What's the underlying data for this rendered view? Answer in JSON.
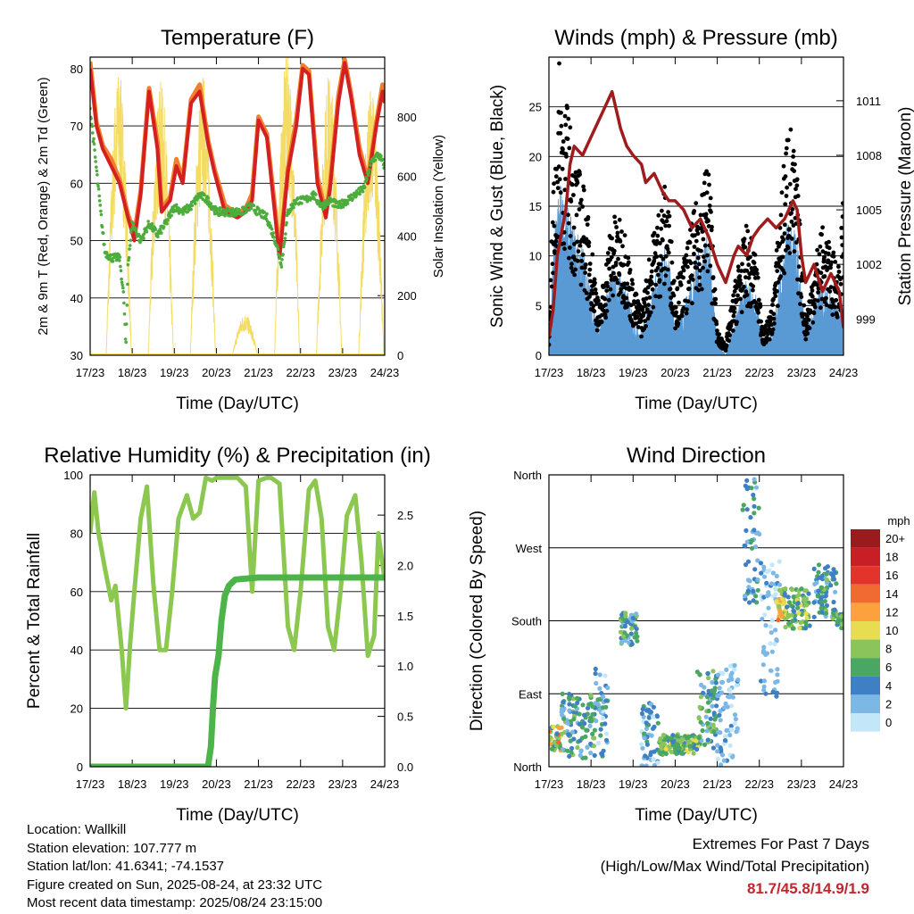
{
  "info": {
    "location": "Location: Wallkill",
    "elevation": "Station elevation: 107.777 m",
    "latlon": "Station lat/lon: 41.6341; -74.1537",
    "created": "Figure created on Sun, 2025-08-24, at 23:32 UTC",
    "recent": "Most recent data timestamp: 2025/08/24 23:15:00"
  },
  "extremes": {
    "title": "Extremes For Past 7 Days",
    "subtitle": "(High/Low/Max Wind/Total Precipitation)",
    "values": "81.7/45.8/14.9/1.9"
  },
  "colors": {
    "temp_red": "#d42020",
    "temp_orange": "#f08030",
    "dewpoint_green": "#4cac3c",
    "insolation_yellow": "#f4dc64",
    "wind_blue": "#5a9ad4",
    "gust_black": "#000000",
    "pressure_maroon": "#a01c1c",
    "rh_lightgreen": "#8cc850",
    "precip_green": "#4cb448"
  },
  "chart_data": [
    {
      "type": "line",
      "title": "Temperature (F)",
      "xlabel": "Time (Day/UTC)",
      "ylabel": "2m & 9m T (Red, Orange) & 2m Td (Green)",
      "y2label": "Solar Insolation (Yellow)",
      "x_ticks": [
        "17/23",
        "18/23",
        "19/23",
        "20/23",
        "21/23",
        "22/23",
        "23/23",
        "24/23"
      ],
      "ylim": [
        30,
        82
      ],
      "y_ticks": [
        30,
        40,
        50,
        60,
        70,
        80
      ],
      "y2lim": [
        0,
        1000
      ],
      "y2_ticks": [
        0,
        200,
        400,
        600,
        800
      ],
      "grid": true,
      "series": [
        {
          "name": "2m T",
          "axis": "left",
          "color": "#d42020",
          "x": [
            0,
            0.15,
            0.3,
            0.5,
            0.7,
            0.9,
            1.05,
            1.2,
            1.4,
            1.6,
            1.7,
            1.9,
            2.05,
            2.2,
            2.4,
            2.6,
            2.8,
            2.95,
            3.2,
            3.5,
            3.7,
            3.85,
            4.0,
            4.2,
            4.4,
            4.5,
            4.7,
            4.9,
            5.05,
            5.2,
            5.4,
            5.6,
            5.7,
            5.9,
            6.05,
            6.2,
            6.4,
            6.6,
            6.8,
            6.95,
            7.0
          ],
          "y": [
            80,
            70,
            66,
            63,
            60,
            54,
            50,
            58,
            76,
            66,
            55,
            57,
            63,
            60,
            74,
            76,
            67,
            62,
            55,
            54,
            55,
            57,
            71,
            68,
            54,
            47,
            62,
            70,
            80,
            79,
            60,
            54,
            59,
            74,
            81,
            75,
            65,
            60,
            70,
            76,
            74
          ]
        },
        {
          "name": "2m Td",
          "axis": "left",
          "color": "#4cac3c",
          "x": [
            0,
            0.1,
            0.25,
            0.35,
            0.5,
            0.7,
            0.8,
            0.85,
            0.9,
            1.0,
            1.2,
            1.4,
            1.6,
            1.8,
            2.0,
            2.2,
            2.4,
            2.6,
            2.8,
            3.0,
            3.3,
            3.6,
            3.8,
            4.0,
            4.2,
            4.4,
            4.55,
            4.7,
            4.9,
            5.1,
            5.3,
            5.5,
            5.7,
            5.9,
            6.1,
            6.3,
            6.5,
            6.7,
            6.85,
            7.0
          ],
          "y": [
            73,
            66,
            55,
            48,
            47,
            47,
            40,
            31,
            46,
            53,
            50,
            53,
            51,
            53,
            56,
            55,
            56,
            58,
            57,
            55,
            55,
            55,
            56,
            55,
            54,
            50,
            46,
            55,
            57,
            57,
            58,
            56,
            57,
            56,
            57,
            58,
            59,
            64,
            65,
            63
          ]
        },
        {
          "name": "Solar Insolation",
          "axis": "right",
          "color": "#f4dc64",
          "days": [
            0,
            1,
            2,
            3,
            4,
            5,
            6
          ],
          "daily_peaks": [
            960,
            920,
            950,
            140,
            1010,
            950,
            910
          ]
        }
      ]
    },
    {
      "type": "scatter",
      "title": "Winds (mph) & Pressure (mb)",
      "xlabel": "Time (Day/UTC)",
      "ylabel": "Sonic Wind & Gust (Blue, Black)",
      "y2label": "Station Pressure (Maroon)",
      "x_ticks": [
        "17/23",
        "18/23",
        "19/23",
        "20/23",
        "21/23",
        "22/23",
        "23/23",
        "24/23"
      ],
      "ylim": [
        0,
        30
      ],
      "y_ticks": [
        0,
        5,
        10,
        15,
        20,
        25
      ],
      "y2lim": [
        997.0,
        1013.4
      ],
      "y2_ticks": [
        999,
        1002,
        1005,
        1008,
        1011
      ],
      "grid": true,
      "series": [
        {
          "name": "Station Pressure",
          "axis": "right",
          "color": "#a01c1c",
          "x": [
            0,
            0.1,
            0.2,
            0.4,
            0.5,
            0.6,
            0.8,
            1.0,
            1.3,
            1.5,
            1.65,
            1.7,
            1.85,
            2.0,
            2.2,
            2.3,
            2.5,
            2.7,
            2.85,
            3.0,
            3.2,
            3.4,
            3.6,
            3.8,
            4.0,
            4.2,
            4.4,
            4.5,
            4.7,
            4.85,
            5.0,
            5.2,
            5.4,
            5.6,
            5.8,
            5.9,
            6.0,
            6.1,
            6.3,
            6.5,
            6.7,
            6.8,
            6.9,
            7.0
          ],
          "y": [
            998.0,
            999.5,
            1002.5,
            1005.0,
            1007.5,
            1008.5,
            1008.0,
            1009.0,
            1010.5,
            1011.5,
            1010.0,
            1009.5,
            1008.5,
            1008.0,
            1007.5,
            1006.5,
            1007.0,
            1006.0,
            1005.5,
            1005.5,
            1005.0,
            1004.0,
            1004.5,
            1003.5,
            1002.0,
            1001.0,
            1002.5,
            1003.0,
            1002.5,
            1003.5,
            1004.0,
            1004.5,
            1004.0,
            1004.5,
            1005.5,
            1005.0,
            1002.5,
            1001.0,
            1002.0,
            1000.5,
            1001.5,
            1001.0,
            1000.5,
            998.5
          ]
        },
        {
          "name": "Sonic Wind",
          "axis": "left",
          "color": "#5a9ad4",
          "x": [
            0,
            0.1,
            0.25,
            0.4,
            0.6,
            0.8,
            1.0,
            1.2,
            1.5,
            1.8,
            2.0,
            2.2,
            2.5,
            2.8,
            3.0,
            3.2,
            3.5,
            3.8,
            4.0,
            4.2,
            4.5,
            4.7,
            4.9,
            5.1,
            5.3,
            5.5,
            5.7,
            5.9,
            6.1,
            6.3,
            6.5,
            6.7,
            6.9,
            7.0
          ],
          "y": [
            1,
            8,
            14,
            12,
            10,
            9,
            5,
            2,
            7,
            6,
            3,
            2,
            6,
            9,
            3,
            4,
            8,
            10,
            1,
            0,
            4,
            6,
            5,
            1,
            2,
            7,
            12,
            9,
            2,
            4,
            6,
            5,
            4,
            3
          ]
        },
        {
          "name": "Gust",
          "axis": "left",
          "color": "#000000",
          "x": [
            0,
            0.1,
            0.25,
            0.4,
            0.6,
            0.8,
            1.0,
            1.2,
            1.5,
            1.8,
            2.0,
            2.2,
            2.5,
            2.8,
            3.0,
            3.2,
            3.5,
            3.8,
            4.0,
            4.2,
            4.5,
            4.7,
            4.9,
            5.1,
            5.3,
            5.5,
            5.7,
            5.9,
            6.1,
            6.3,
            6.5,
            6.7,
            6.9,
            7.0
          ],
          "y": [
            2,
            14,
            25,
            22,
            17,
            15,
            10,
            4,
            12,
            11,
            6,
            4,
            11,
            15,
            6,
            8,
            13,
            17,
            2,
            1,
            8,
            11,
            9,
            2,
            4,
            13,
            21,
            15,
            3,
            8,
            11,
            9,
            8,
            14
          ]
        }
      ]
    },
    {
      "type": "line",
      "title": "Relative Humidity (%) & Precipitation (in)",
      "xlabel": "Time (Day/UTC)",
      "ylabel": "Percent & Total Rainfall",
      "x_ticks": [
        "17/23",
        "18/23",
        "19/23",
        "20/23",
        "21/23",
        "22/23",
        "23/23",
        "24/23"
      ],
      "ylim": [
        0,
        100
      ],
      "y_ticks": [
        0,
        20,
        40,
        60,
        80,
        100
      ],
      "y2lim": [
        0,
        2.9
      ],
      "y2_ticks": [
        "0.0",
        "0.5",
        "1.0",
        "1.5",
        "2.0",
        "2.5"
      ],
      "grid": true,
      "series": [
        {
          "name": "Relative Humidity",
          "axis": "left",
          "color": "#8cc850",
          "x": [
            0,
            0.1,
            0.2,
            0.35,
            0.5,
            0.6,
            0.75,
            0.85,
            0.95,
            1.05,
            1.2,
            1.35,
            1.5,
            1.65,
            1.8,
            1.95,
            2.1,
            2.3,
            2.45,
            2.6,
            2.75,
            2.9,
            3.0,
            3.2,
            3.5,
            3.7,
            3.85,
            4.0,
            4.2,
            4.3,
            4.5,
            4.7,
            4.85,
            5.0,
            5.2,
            5.35,
            5.5,
            5.65,
            5.8,
            5.95,
            6.1,
            6.3,
            6.45,
            6.6,
            6.75,
            6.85,
            7.0
          ],
          "y": [
            80,
            94,
            80,
            68,
            57,
            62,
            40,
            20,
            42,
            60,
            85,
            96,
            63,
            40,
            40,
            60,
            85,
            93,
            85,
            87,
            99,
            98,
            99,
            99,
            99,
            96,
            60,
            98,
            99,
            99,
            97,
            48,
            40,
            60,
            95,
            98,
            85,
            48,
            40,
            60,
            86,
            93,
            70,
            38,
            45,
            80,
            64
          ]
        },
        {
          "name": "Total Precipitation",
          "axis": "right",
          "color": "#4cb448",
          "x": [
            0,
            1.0,
            2.0,
            2.8,
            2.87,
            2.92,
            2.97,
            3.05,
            3.12,
            3.2,
            3.3,
            3.45,
            4.0,
            5.0,
            6.0,
            7.0
          ],
          "y": [
            0,
            0,
            0,
            0,
            0.2,
            0.6,
            0.9,
            1.1,
            1.45,
            1.7,
            1.8,
            1.86,
            1.88,
            1.88,
            1.88,
            1.88
          ]
        }
      ]
    },
    {
      "type": "scatter",
      "title": "Wind Direction",
      "xlabel": "Time (Day/UTC)",
      "ylabel": "Direction (Colored By Speed)",
      "x_ticks": [
        "17/23",
        "18/23",
        "19/23",
        "20/23",
        "21/23",
        "22/23",
        "23/23",
        "24/23"
      ],
      "y_ticks": [
        "North",
        "East",
        "South",
        "West",
        "North"
      ],
      "ylim": [
        0,
        360
      ],
      "grid": true,
      "legend": {
        "title": "mph",
        "labels": [
          "20+",
          "18",
          "16",
          "14",
          "12",
          "10",
          "8",
          "6",
          "4",
          "2",
          "0"
        ],
        "colors": [
          "#9a1a1e",
          "#c81e25",
          "#e2342c",
          "#f06a32",
          "#fba23f",
          "#e8dc50",
          "#8ac45a",
          "#4aa663",
          "#3e80c3",
          "#7cb8e6",
          "#c3e6f8"
        ]
      },
      "clusters": [
        {
          "x": [
            0,
            0.3
          ],
          "y": [
            20,
            50
          ],
          "speed": [
            4,
            14
          ]
        },
        {
          "x": [
            0.3,
            1.1
          ],
          "y": [
            10,
            90
          ],
          "speed": [
            2,
            8
          ]
        },
        {
          "x": [
            1.1,
            1.4
          ],
          "y": [
            10,
            130
          ],
          "speed": [
            0,
            6
          ]
        },
        {
          "x": [
            1.7,
            2.1
          ],
          "y": [
            150,
            190
          ],
          "speed": [
            2,
            8
          ]
        },
        {
          "x": [
            2.2,
            2.6
          ],
          "y": [
            0,
            80
          ],
          "speed": [
            0,
            6
          ]
        },
        {
          "x": [
            2.6,
            3.6
          ],
          "y": [
            15,
            40
          ],
          "speed": [
            4,
            10
          ]
        },
        {
          "x": [
            3.5,
            4.0
          ],
          "y": [
            20,
            120
          ],
          "speed": [
            2,
            8
          ]
        },
        {
          "x": [
            4.0,
            4.5
          ],
          "y": [
            0,
            130
          ],
          "speed": [
            0,
            4
          ]
        },
        {
          "x": [
            4.6,
            5.0
          ],
          "y": [
            200,
            360
          ],
          "speed": [
            2,
            6
          ]
        },
        {
          "x": [
            5.0,
            5.5
          ],
          "y": [
            80,
            260
          ],
          "speed": [
            0,
            4
          ]
        },
        {
          "x": [
            5.4,
            5.6
          ],
          "y": [
            180,
            220
          ],
          "speed": [
            8,
            14
          ]
        },
        {
          "x": [
            5.6,
            6.2
          ],
          "y": [
            170,
            220
          ],
          "speed": [
            4,
            10
          ]
        },
        {
          "x": [
            6.3,
            6.85
          ],
          "y": [
            180,
            250
          ],
          "speed": [
            2,
            8
          ]
        },
        {
          "x": [
            6.85,
            7.0
          ],
          "y": [
            170,
            190
          ],
          "speed": [
            4,
            8
          ]
        }
      ]
    }
  ]
}
